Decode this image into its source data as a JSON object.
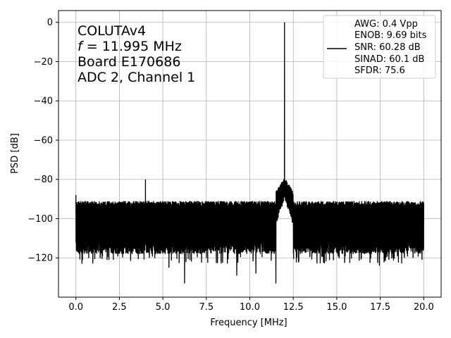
{
  "chart_data": {
    "type": "line",
    "xlabel": "Frequency [MHz]",
    "ylabel": "PSD [dB]",
    "xlim": [
      -1.0,
      21.0
    ],
    "ylim": [
      -140,
      6
    ],
    "xticks": [
      0.0,
      2.5,
      5.0,
      7.5,
      10.0,
      12.5,
      15.0,
      17.5,
      20.0
    ],
    "xtick_labels": [
      "0.0",
      "2.5",
      "5.0",
      "7.5",
      "10.0",
      "12.5",
      "15.0",
      "17.5",
      "20.0"
    ],
    "yticks": [
      0,
      -20,
      -40,
      -60,
      -80,
      -100,
      -120
    ],
    "ytick_labels": [
      "0",
      "−20",
      "−40",
      "−60",
      "−80",
      "−100",
      "−120"
    ],
    "grid": true,
    "legend_position": "top-right",
    "annotation_lines": [
      "COLUTAv4",
      "f = 11.995 MHz",
      "Board E170686",
      "ADC 2, Channel 1"
    ],
    "annotation": {
      "line1": "COLUTAv4",
      "line2_symbol": "f",
      "line2_value": " = 11.995 MHz",
      "line3": "Board E170686",
      "line4": "ADC 2, Channel 1"
    },
    "series": [
      {
        "color": "#000000",
        "legend_lines": [
          "AWG: 0.4 Vpp",
          "ENOB: 9.69 bits",
          "SNR: 60.28 dB",
          "SINAD: 60.1 dB",
          "SFDR: 75.6"
        ],
        "noise_floor_mean": -101,
        "noise_floor_range": [
          -115,
          -92
        ],
        "x_start": 0.0,
        "x_end": 20.0,
        "peaks": [
          {
            "x": 0.0,
            "y": -88
          },
          {
            "x": 4.0,
            "y": -80
          },
          {
            "x": 11.995,
            "y": 0
          },
          {
            "x": 12.0,
            "y": -79
          }
        ],
        "dips": [
          {
            "x": 0.35,
            "y": -123
          },
          {
            "x": 1.9,
            "y": -121
          },
          {
            "x": 5.35,
            "y": -125
          },
          {
            "x": 6.25,
            "y": -133
          },
          {
            "x": 9.25,
            "y": -129
          },
          {
            "x": 10.35,
            "y": -128
          },
          {
            "x": 11.5,
            "y": -133
          },
          {
            "x": 17.45,
            "y": -124
          }
        ]
      }
    ]
  }
}
